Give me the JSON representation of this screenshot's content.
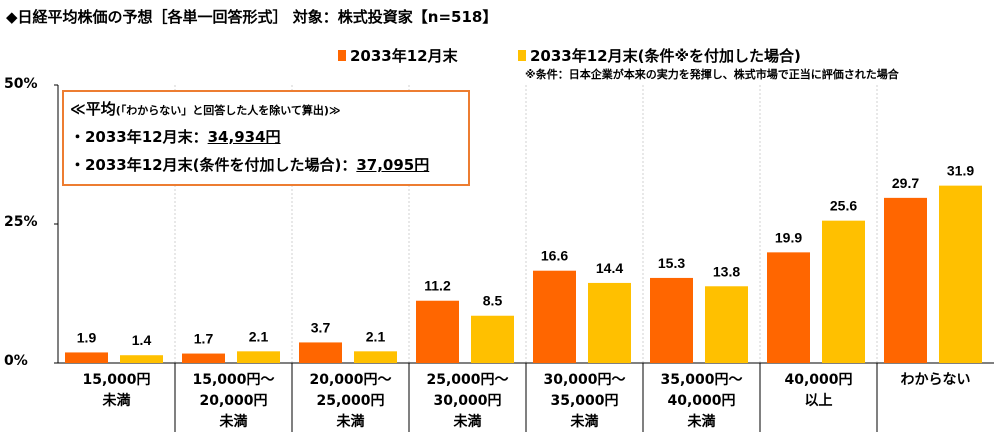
{
  "title": "◆日経平均株価の予想［各単一回答形式］ 対象：株式投資家【n=518】",
  "note": "※条件：日本企業が本来の実力を発揮し、株式市場で正当に評価された場合",
  "average_box": {
    "heading": "≪平均",
    "heading_sub": "(「わからない」と回答した人を除いて算出)≫",
    "line1_label": "・2033年12月末：",
    "line1_value": "34,934円",
    "line2_label": "・2033年12月末(条件を付加した場合)：",
    "line2_value": "37,095円"
  },
  "chart_data": {
    "type": "bar",
    "title": "日経平均株価の予想",
    "categories": [
      "15,000円\n未満",
      "15,000円～\n20,000円\n未満",
      "20,000円～\n25,000円\n未満",
      "25,000円～\n30,000円\n未満",
      "30,000円～\n35,000円\n未満",
      "35,000円～\n40,000円\n未満",
      "40,000円\n以上",
      "わからない"
    ],
    "series": [
      {
        "name": "2033年12月末",
        "color": "#FF6600",
        "values": [
          1.9,
          1.7,
          3.7,
          11.2,
          16.6,
          15.3,
          19.9,
          29.7
        ]
      },
      {
        "name": "2033年12月末(条件※を付加した場合)",
        "color": "#FFC000",
        "values": [
          1.4,
          2.1,
          2.1,
          8.5,
          14.4,
          13.8,
          25.6,
          31.9
        ]
      }
    ],
    "ylim": [
      0,
      50
    ],
    "yticks": [
      "0%",
      "25%",
      "50%"
    ],
    "legend": "top"
  }
}
